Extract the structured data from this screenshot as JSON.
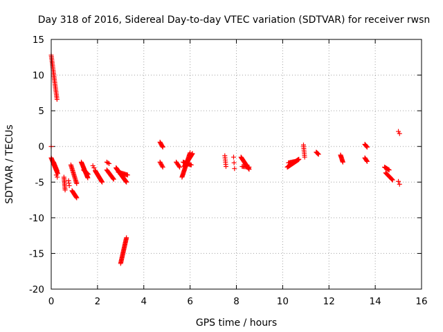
{
  "chart_data": {
    "type": "scatter",
    "title": "Day 318 of 2016, Sidereal Day-to-day VTEC variation (SDTVAR) for receiver rwsn",
    "xlabel": "GPS time / hours",
    "ylabel": "SDTVAR / TECUs",
    "xlim": [
      0,
      16
    ],
    "ylim": [
      -20,
      15
    ],
    "grid": true,
    "marker": "+",
    "series_color": "#ff0000",
    "x_ticks": [
      0,
      2,
      4,
      6,
      8,
      10,
      12,
      14,
      16
    ],
    "x_tick_labels": [
      "0",
      "2",
      "4",
      "6",
      "8",
      "10",
      "12",
      "14",
      "16"
    ],
    "y_ticks": [
      15,
      10,
      5,
      0,
      -5,
      -10,
      -15,
      -20
    ],
    "y_tick_labels": [
      "15",
      "10",
      "5",
      "0",
      "-5",
      "-10",
      "-15",
      "-20"
    ],
    "segments": [
      {
        "x0": 0.0,
        "y0": 12.8,
        "x1": 0.25,
        "y1": 6.6,
        "n": 30
      },
      {
        "x0": 0.0,
        "y0": 0.0,
        "x1": 0.0,
        "y1": 0.0,
        "n": 1
      },
      {
        "x0": 0.0,
        "y0": -1.6,
        "x1": 0.28,
        "y1": -3.8,
        "n": 24
      },
      {
        "x0": 0.1,
        "y0": -2.2,
        "x1": 0.25,
        "y1": -3.4,
        "n": 10
      },
      {
        "x0": 0.22,
        "y0": -4.0,
        "x1": 0.26,
        "y1": -4.3,
        "n": 2
      },
      {
        "x0": 0.55,
        "y0": -4.3,
        "x1": 0.6,
        "y1": -6.1,
        "n": 10
      },
      {
        "x0": 0.75,
        "y0": -4.8,
        "x1": 0.78,
        "y1": -5.5,
        "n": 3
      },
      {
        "x0": 0.85,
        "y0": -2.6,
        "x1": 1.1,
        "y1": -5.2,
        "n": 18
      },
      {
        "x0": 0.9,
        "y0": -6.2,
        "x1": 1.1,
        "y1": -7.2,
        "n": 14
      },
      {
        "x0": 1.3,
        "y0": -2.2,
        "x1": 1.58,
        "y1": -4.4,
        "n": 22
      },
      {
        "x0": 1.4,
        "y0": -3.3,
        "x1": 1.6,
        "y1": -3.9,
        "n": 8
      },
      {
        "x0": 1.8,
        "y0": -2.7,
        "x1": 1.85,
        "y1": -3.0,
        "n": 2
      },
      {
        "x0": 1.9,
        "y0": -3.4,
        "x1": 2.2,
        "y1": -5.0,
        "n": 22
      },
      {
        "x0": 2.4,
        "y0": -2.2,
        "x1": 2.5,
        "y1": -2.4,
        "n": 3
      },
      {
        "x0": 2.4,
        "y0": -3.3,
        "x1": 2.7,
        "y1": -4.6,
        "n": 14
      },
      {
        "x0": 2.8,
        "y0": -3.0,
        "x1": 3.25,
        "y1": -5.0,
        "n": 40
      },
      {
        "x0": 2.9,
        "y0": -3.6,
        "x1": 3.3,
        "y1": -4.0,
        "n": 12
      },
      {
        "x0": 3.0,
        "y0": -16.4,
        "x1": 3.25,
        "y1": -12.8,
        "n": 28
      },
      {
        "x0": 4.7,
        "y0": 0.6,
        "x1": 4.82,
        "y1": -0.1,
        "n": 7
      },
      {
        "x0": 4.7,
        "y0": -2.2,
        "x1": 4.82,
        "y1": -2.9,
        "n": 6
      },
      {
        "x0": 5.4,
        "y0": -2.2,
        "x1": 5.55,
        "y1": -2.9,
        "n": 6
      },
      {
        "x0": 5.65,
        "y0": -4.3,
        "x1": 6.0,
        "y1": -0.9,
        "n": 30
      },
      {
        "x0": 5.75,
        "y0": -2.8,
        "x1": 6.1,
        "y1": -1.0,
        "n": 30
      },
      {
        "x0": 5.7,
        "y0": -2.2,
        "x1": 6.05,
        "y1": -2.6,
        "n": 12
      },
      {
        "x0": 7.5,
        "y0": -1.3,
        "x1": 7.55,
        "y1": -2.8,
        "n": 6
      },
      {
        "x0": 7.88,
        "y0": -1.5,
        "x1": 7.92,
        "y1": -3.1,
        "n": 3
      },
      {
        "x0": 8.2,
        "y0": -1.5,
        "x1": 8.55,
        "y1": -3.2,
        "n": 22
      },
      {
        "x0": 8.25,
        "y0": -2.8,
        "x1": 8.55,
        "y1": -2.9,
        "n": 8
      },
      {
        "x0": 10.2,
        "y0": -2.9,
        "x1": 10.7,
        "y1": -1.8,
        "n": 36
      },
      {
        "x0": 10.25,
        "y0": -2.3,
        "x1": 10.55,
        "y1": -2.1,
        "n": 10
      },
      {
        "x0": 10.9,
        "y0": 0.2,
        "x1": 10.95,
        "y1": -1.5,
        "n": 8
      },
      {
        "x0": 11.45,
        "y0": -0.8,
        "x1": 11.55,
        "y1": -1.1,
        "n": 6
      },
      {
        "x0": 12.5,
        "y0": -1.2,
        "x1": 12.6,
        "y1": -2.2,
        "n": 10
      },
      {
        "x0": 13.55,
        "y0": 0.3,
        "x1": 13.65,
        "y1": -0.1,
        "n": 6
      },
      {
        "x0": 13.55,
        "y0": -1.6,
        "x1": 13.65,
        "y1": -2.1,
        "n": 6
      },
      {
        "x0": 14.4,
        "y0": -2.9,
        "x1": 14.6,
        "y1": -3.3,
        "n": 8
      },
      {
        "x0": 14.45,
        "y0": -3.7,
        "x1": 14.75,
        "y1": -4.7,
        "n": 14
      },
      {
        "x0": 15.0,
        "y0": 2.1,
        "x1": 15.05,
        "y1": 1.8,
        "n": 2
      },
      {
        "x0": 15.0,
        "y0": -4.9,
        "x1": 15.05,
        "y1": -5.3,
        "n": 2
      }
    ]
  }
}
